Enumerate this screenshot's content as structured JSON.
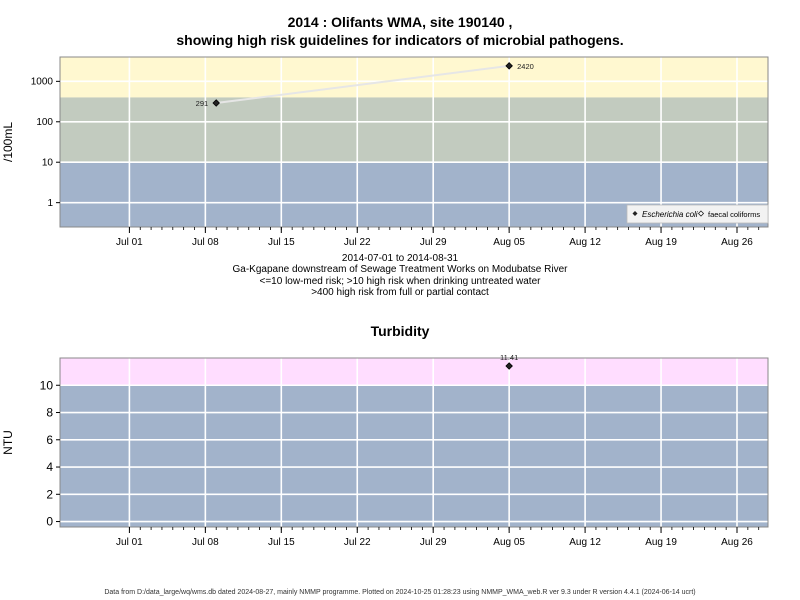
{
  "chart_data": [
    {
      "type": "scatter",
      "title": "2014 : Olifants WMA, site 190140 ,",
      "subtitle": "showing high risk guidelines for indicators of microbial pathogens.",
      "ylabel": "/100mL",
      "ylog": true,
      "ylim": [
        0.25,
        4000
      ],
      "yticks": [
        1,
        10,
        100,
        1000
      ],
      "ytick_labels": [
        "1",
        "10",
        "100",
        "1000"
      ],
      "xticks": [
        "2014-07-01",
        "2014-07-08",
        "2014-07-15",
        "2014-07-22",
        "2014-07-29",
        "2014-08-05",
        "2014-08-12",
        "2014-08-19",
        "2014-08-26"
      ],
      "xtick_labels": [
        "Jul 01",
        "Jul 08",
        "Jul 15",
        "Jul 22",
        "Jul 29",
        "Aug 05",
        "Aug 12",
        "Aug 19",
        "Aug 26"
      ],
      "bands": [
        {
          "from": 400,
          "to": 4000,
          "color": "#fff8d0",
          "label": ">400 high risk from full or partial contact"
        },
        {
          "from": 10,
          "to": 400,
          "color": "#c2cbbf",
          "label": ">10 high risk when drinking untreated water"
        },
        {
          "from": 0.25,
          "to": 10,
          "color": "#a2b3cb",
          "label": "<=10 low-med risk"
        }
      ],
      "series": [
        {
          "name": "Escherichia coli",
          "marker": "filled-diamond",
          "points": [
            {
              "x": "2014-07-09",
              "y": 291,
              "label": "291"
            },
            {
              "x": "2014-08-05",
              "y": 2420,
              "label": "2420"
            }
          ]
        },
        {
          "name": "faecal coliforms",
          "marker": "open-diamond",
          "points": []
        }
      ],
      "legend_position": "bottom-right",
      "grid": true
    },
    {
      "type": "scatter",
      "title": "Turbidity",
      "ylabel": "NTU",
      "ylim": [
        -0.4,
        12.0
      ],
      "yticks": [
        0,
        2,
        4,
        6,
        8,
        10
      ],
      "ytick_labels": [
        "0",
        "2",
        "4",
        "6",
        "8",
        "10"
      ],
      "xticks": [
        "2014-07-01",
        "2014-07-08",
        "2014-07-15",
        "2014-07-22",
        "2014-07-29",
        "2014-08-05",
        "2014-08-12",
        "2014-08-19",
        "2014-08-26"
      ],
      "xtick_labels": [
        "Jul 01",
        "Jul 08",
        "Jul 15",
        "Jul 22",
        "Jul 29",
        "Aug 05",
        "Aug 12",
        "Aug 19",
        "Aug 26"
      ],
      "bands": [
        {
          "from": 10,
          "to": 12.0,
          "color": "#ffddff"
        },
        {
          "from": -0.4,
          "to": 10,
          "color": "#a2b3cb"
        }
      ],
      "series": [
        {
          "name": "Turbidity",
          "marker": "filled-diamond",
          "points": [
            {
              "x": "2014-08-05",
              "y": 11.41,
              "label": "11.41"
            }
          ]
        }
      ],
      "grid": true
    }
  ],
  "captions": {
    "date_range": "2014-07-01 to 2014-08-31",
    "site_description": "Ga-Kgapane downstream of Sewage Treatment Works on Modubatse River",
    "risk_line_1": "<=10 low-med risk; >10 high risk when drinking untreated water",
    "risk_line_2": ">400 high risk from full or partial contact"
  },
  "footer": "Data from D:/data_large/wq/wms.db dated 2024-08-27, mainly NMMP programme. Plotted on 2024-10-25 01:28:23 using NMMP_WMA_web.R ver 9.3 under R version 4.4.1 (2024-06-14 ucrt)"
}
